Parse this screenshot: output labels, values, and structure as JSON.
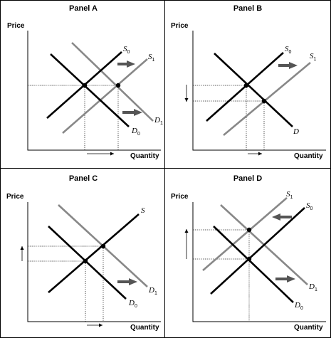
{
  "panels": [
    {
      "title": "Panel A",
      "y_axis": "Price",
      "x_axis": "Quantity",
      "supply_labels": [
        {
          "main": "S",
          "sub": "0"
        },
        {
          "main": "S",
          "sub": "1"
        }
      ],
      "demand_labels": [
        {
          "main": "D",
          "sub": "0"
        },
        {
          "main": "D",
          "sub": "1"
        }
      ]
    },
    {
      "title": "Panel B",
      "y_axis": "Price",
      "x_axis": "Quantity",
      "supply_labels": [
        {
          "main": "S",
          "sub": "0"
        },
        {
          "main": "S",
          "sub": "1"
        }
      ],
      "demand_labels": [
        {
          "main": "D",
          "sub": ""
        }
      ]
    },
    {
      "title": "Panel C",
      "y_axis": "Price",
      "x_axis": "Quantity",
      "supply_labels": [
        {
          "main": "S",
          "sub": ""
        }
      ],
      "demand_labels": [
        {
          "main": "D",
          "sub": "0"
        },
        {
          "main": "D",
          "sub": "1"
        }
      ]
    },
    {
      "title": "Panel D",
      "y_axis": "Price",
      "x_axis": "Quantity",
      "supply_labels": [
        {
          "main": "S",
          "sub": "1"
        },
        {
          "main": "S",
          "sub": "0"
        }
      ],
      "demand_labels": [
        {
          "main": "D",
          "sub": "1"
        },
        {
          "main": "D",
          "sub": "0"
        }
      ]
    }
  ]
}
